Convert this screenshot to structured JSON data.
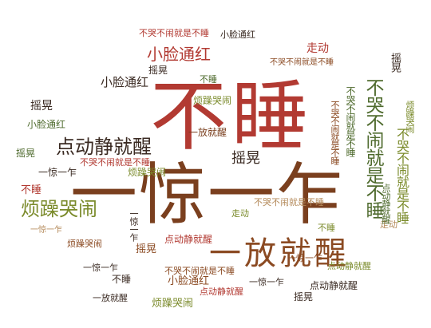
{
  "cloud": {
    "colors": {
      "brown": "#8b4a22",
      "red": "#b23a32",
      "olive": "#7a8a2a",
      "green": "#4f6b2e",
      "dark": "#3a2a22",
      "tan": "#b48a5a"
    },
    "words": {
      "bushui": "不睡",
      "yijing": "一惊一乍",
      "yifang": "一放就醒",
      "dian": "点动静就醒",
      "fanzao": "烦躁哭闹",
      "xiaolian": "小脸通红",
      "yaohuang": "摇晃",
      "bukubunao": "不哭不闹就是不睡",
      "zoudong": "走动"
    }
  }
}
